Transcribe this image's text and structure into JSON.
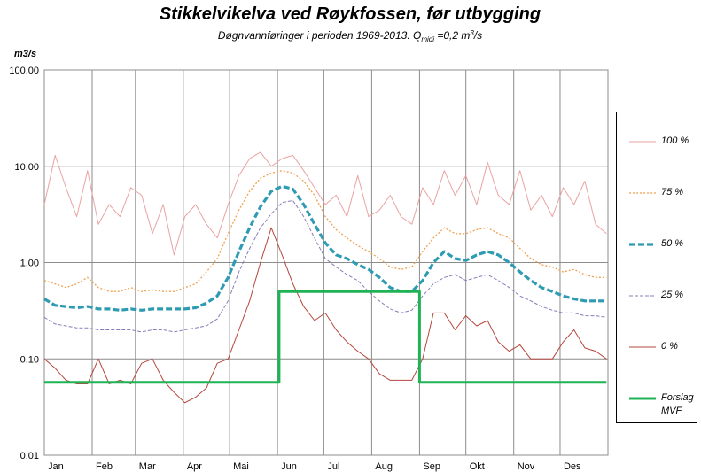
{
  "chart_data": {
    "type": "line",
    "title": "Stikkelvikelva ved Røykfossen, før utbygging",
    "subtitle": [
      "Døgnvannføringer i perioden 1969-2013. Q",
      "midi",
      " =0,2 m",
      "3",
      "/s"
    ],
    "y_label": "m3/s",
    "log_scale": true,
    "grid": true,
    "xlim": [
      1,
      366
    ],
    "xticks": [
      {
        "value": 1,
        "label": "Jan"
      },
      {
        "value": 32,
        "label": "Feb"
      },
      {
        "value": 60,
        "label": "Mar"
      },
      {
        "value": 91,
        "label": "Apr"
      },
      {
        "value": 121,
        "label": "Mai"
      },
      {
        "value": 152,
        "label": "Jun"
      },
      {
        "value": 182,
        "label": "Jul"
      },
      {
        "value": 213,
        "label": "Aug"
      },
      {
        "value": 244,
        "label": "Sep"
      },
      {
        "value": 274,
        "label": "Okt"
      },
      {
        "value": 305,
        "label": "Nov"
      },
      {
        "value": 335,
        "label": "Des"
      }
    ],
    "ylim": [
      0.01,
      100
    ],
    "yticks": [
      {
        "value": 0.01,
        "label": "0.01"
      },
      {
        "value": 0.1,
        "label": "0.10"
      },
      {
        "value": 1,
        "label": "1.00"
      },
      {
        "value": 10,
        "label": "10.00"
      },
      {
        "value": 100,
        "label": "100.00"
      }
    ],
    "x": [
      1,
      8,
      15,
      22,
      29,
      36,
      43,
      50,
      57,
      64,
      71,
      78,
      85,
      92,
      99,
      106,
      113,
      120,
      127,
      134,
      141,
      148,
      155,
      162,
      169,
      176,
      183,
      190,
      197,
      204,
      211,
      218,
      225,
      232,
      239,
      246,
      253,
      260,
      267,
      274,
      281,
      288,
      295,
      302,
      309,
      316,
      323,
      330,
      337,
      344,
      351,
      358,
      365
    ],
    "legend": "right",
    "series": [
      {
        "name": "100 %",
        "color": "#e9a3a3",
        "line_style": "solid",
        "values": [
          4,
          13,
          6,
          3,
          9,
          2.5,
          4,
          3,
          6,
          5,
          2,
          4,
          1.2,
          3,
          4,
          2.5,
          1.8,
          4,
          8,
          12,
          14,
          10,
          12,
          13,
          9,
          6,
          4,
          5,
          3,
          8,
          3,
          3.5,
          5,
          3,
          2.5,
          6,
          4,
          9,
          5,
          8,
          4,
          11,
          5,
          4,
          9,
          3.5,
          5,
          3,
          6,
          4,
          7,
          2.5,
          2
        ]
      },
      {
        "name": "75 %",
        "color": "#f0a050",
        "line_style": "dotted",
        "values": [
          0.65,
          0.6,
          0.55,
          0.6,
          0.7,
          0.55,
          0.5,
          0.5,
          0.55,
          0.5,
          0.52,
          0.5,
          0.5,
          0.55,
          0.6,
          0.8,
          1.1,
          2.0,
          3.5,
          5.5,
          7.5,
          8.5,
          9.0,
          8.5,
          7.0,
          5.0,
          3.0,
          2.2,
          1.8,
          1.5,
          1.3,
          1.1,
          0.9,
          0.85,
          0.9,
          1.3,
          1.8,
          2.3,
          2.0,
          2.0,
          2.2,
          2.3,
          2.0,
          1.8,
          1.4,
          1.1,
          0.95,
          0.9,
          0.8,
          0.85,
          0.75,
          0.7,
          0.7
        ]
      },
      {
        "name": "50 %",
        "color": "#2f9bb3",
        "line_style": "bold-dashed",
        "values": [
          0.42,
          0.36,
          0.35,
          0.34,
          0.35,
          0.33,
          0.33,
          0.32,
          0.33,
          0.32,
          0.33,
          0.33,
          0.33,
          0.33,
          0.34,
          0.38,
          0.45,
          0.7,
          1.3,
          2.3,
          3.8,
          5.5,
          6.2,
          5.8,
          4.0,
          2.5,
          1.6,
          1.2,
          1.1,
          0.95,
          0.85,
          0.7,
          0.55,
          0.5,
          0.5,
          0.65,
          1.0,
          1.3,
          1.1,
          1.05,
          1.2,
          1.3,
          1.2,
          1.0,
          0.8,
          0.65,
          0.55,
          0.5,
          0.45,
          0.42,
          0.4,
          0.4,
          0.4
        ]
      },
      {
        "name": "25 %",
        "color": "#8a7cb8",
        "line_style": "dashed",
        "values": [
          0.27,
          0.23,
          0.22,
          0.21,
          0.21,
          0.2,
          0.2,
          0.2,
          0.2,
          0.19,
          0.2,
          0.2,
          0.19,
          0.2,
          0.21,
          0.22,
          0.26,
          0.4,
          0.8,
          1.4,
          2.3,
          3.2,
          4.2,
          4.4,
          3.0,
          1.8,
          1.1,
          0.9,
          0.75,
          0.65,
          0.5,
          0.4,
          0.33,
          0.3,
          0.32,
          0.45,
          0.6,
          0.7,
          0.75,
          0.65,
          0.7,
          0.75,
          0.65,
          0.55,
          0.45,
          0.4,
          0.35,
          0.32,
          0.3,
          0.3,
          0.28,
          0.28,
          0.27
        ]
      },
      {
        "name": "0 %",
        "color": "#b4473c",
        "line_style": "solid",
        "values": [
          0.1,
          0.08,
          0.06,
          0.055,
          0.055,
          0.1,
          0.055,
          0.06,
          0.055,
          0.09,
          0.1,
          0.06,
          0.045,
          0.035,
          0.04,
          0.05,
          0.09,
          0.1,
          0.2,
          0.4,
          1.0,
          2.3,
          1.2,
          0.6,
          0.35,
          0.25,
          0.3,
          0.2,
          0.15,
          0.12,
          0.1,
          0.07,
          0.06,
          0.06,
          0.06,
          0.1,
          0.3,
          0.3,
          0.2,
          0.28,
          0.22,
          0.25,
          0.15,
          0.12,
          0.14,
          0.1,
          0.1,
          0.1,
          0.15,
          0.2,
          0.13,
          0.12,
          0.1
        ]
      },
      {
        "name": "Forslag MVF",
        "color": "#1fb356",
        "line_style": "bold-solid",
        "x": [
          1,
          153,
          153,
          244,
          244,
          365
        ],
        "values": [
          0.057,
          0.057,
          0.5,
          0.5,
          0.057,
          0.057
        ]
      }
    ]
  }
}
